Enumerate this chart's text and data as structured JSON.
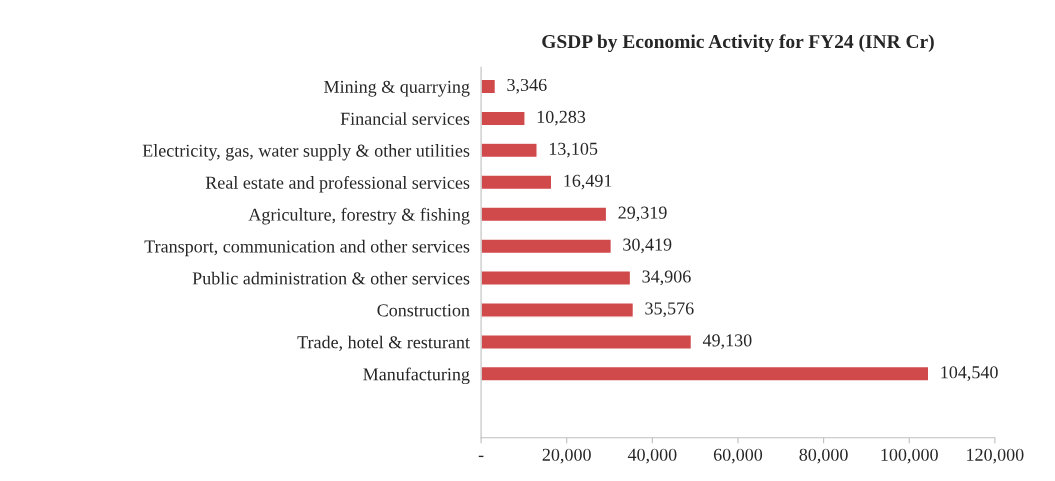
{
  "chart_data": {
    "type": "bar",
    "orientation": "horizontal",
    "title": "GSDP by Economic Activity for FY24 (INR Cr)",
    "categories": [
      "Mining & quarrying",
      "Financial services",
      "Electricity, gas, water supply & other utilities",
      "Real estate and professional services",
      "Agriculture, forestry & fishing",
      "Transport, communication and other services",
      "Public administration & other services",
      "Construction",
      "Trade, hotel & resturant",
      "Manufacturing"
    ],
    "values": [
      3346,
      10283,
      13105,
      16491,
      29319,
      30419,
      34906,
      35576,
      49130,
      104540
    ],
    "value_labels": [
      "3,346",
      "10,283",
      "13,105",
      "16,491",
      "29,319",
      "30,419",
      "34,906",
      "35,576",
      "49,130",
      "104,540"
    ],
    "color": "#d0494b",
    "xlim": [
      0,
      120000
    ],
    "xticks": [
      {
        "value": 0,
        "label": "-"
      },
      {
        "value": 20000,
        "label": "20,000"
      },
      {
        "value": 40000,
        "label": "40,000"
      },
      {
        "value": 60000,
        "label": "60,000"
      },
      {
        "value": 80000,
        "label": "80,000"
      },
      {
        "value": 100000,
        "label": "100,000"
      },
      {
        "value": 120000,
        "label": "120,000"
      }
    ],
    "grid": false,
    "legend": false
  }
}
